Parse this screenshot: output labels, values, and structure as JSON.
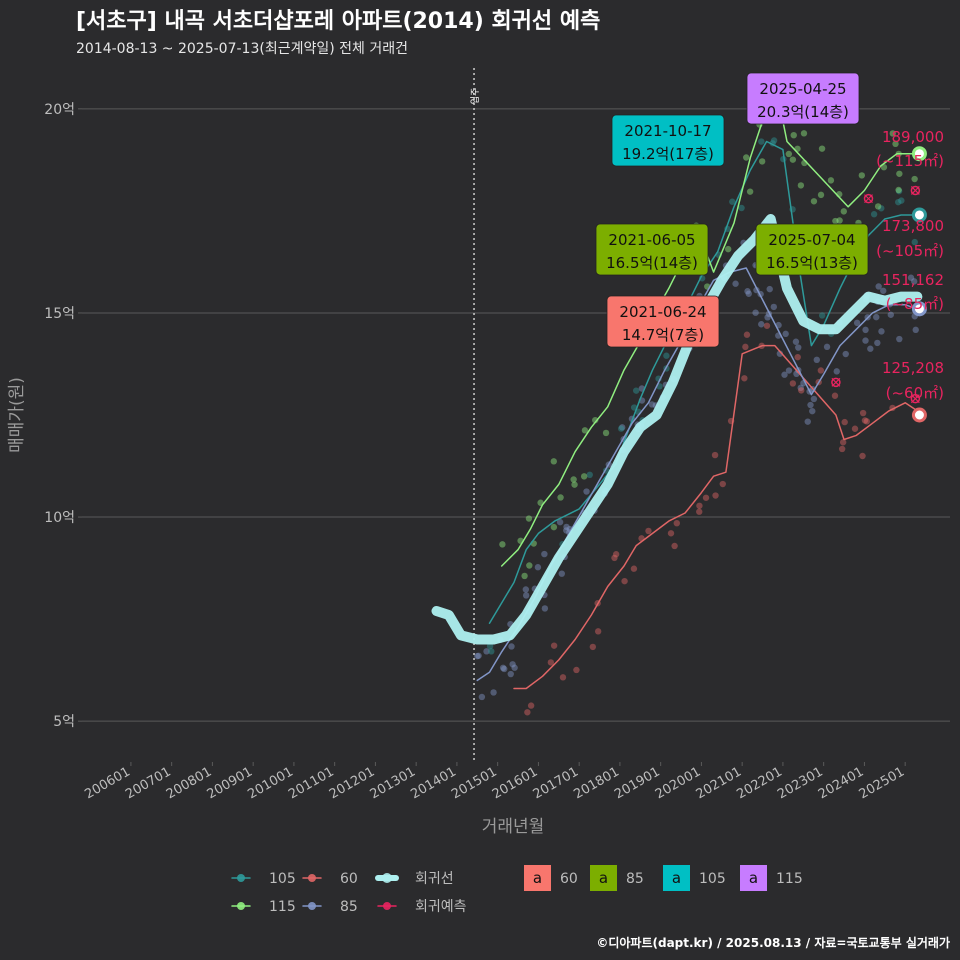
{
  "colors": {
    "background": "#2b2b2d",
    "grid": "#5a5a5a",
    "text": "#bdbdbd",
    "s105": "#2e9a9a",
    "s60": "#e06666",
    "s115": "#90ee80",
    "s85": "#8296c8",
    "regression": "#aef0f0",
    "forecast": "#e8245f",
    "box60": "#f8766d",
    "box85": "#7cae00",
    "box105": "#00bfc4",
    "box115": "#c77cff"
  },
  "chart_data": {
    "type": "line",
    "title": "[서초구] 내곡 서초더샵포레 아파트(2014) 회귀선 예측",
    "subtitle": "2014-08-13 ~ 2025-07-13(최근계약일) 전체 거래건",
    "xlabel": "거래년월",
    "ylabel": "매매가(원)",
    "x_ticks": [
      "200601",
      "200701",
      "200801",
      "200901",
      "201001",
      "201101",
      "201201",
      "201301",
      "201401",
      "201501",
      "201601",
      "201701",
      "201801",
      "201901",
      "202001",
      "202101",
      "202201",
      "202301",
      "202401",
      "202501"
    ],
    "y_ticks": [
      {
        "value": 5,
        "label": "5억"
      },
      {
        "value": 10,
        "label": "10억"
      },
      {
        "value": 15,
        "label": "15억"
      },
      {
        "value": 20,
        "label": "20억"
      }
    ],
    "ylim": [
      4,
      21
    ],
    "xlim": [
      2005.0,
      2026.3
    ],
    "vline": {
      "x": 2014.62,
      "label": "입주"
    },
    "series": [
      {
        "name": "105",
        "color_key": "s105",
        "points": [
          [
            2015.0,
            7.4
          ],
          [
            2015.6,
            8.4
          ],
          [
            2015.9,
            9.2
          ],
          [
            2016.2,
            9.6
          ],
          [
            2016.6,
            9.9
          ],
          [
            2017.2,
            10.2
          ],
          [
            2017.7,
            10.8
          ],
          [
            2018.1,
            11.3
          ],
          [
            2018.4,
            12.1
          ],
          [
            2018.7,
            12.9
          ],
          [
            2019.0,
            13.6
          ],
          [
            2019.4,
            14.4
          ],
          [
            2019.8,
            15.1
          ],
          [
            2020.2,
            15.9
          ],
          [
            2020.6,
            16.5
          ],
          [
            2021.0,
            17.6
          ],
          [
            2021.4,
            18.5
          ],
          [
            2021.8,
            19.2
          ],
          [
            2022.2,
            19.0
          ],
          [
            2022.6,
            16.1
          ],
          [
            2022.9,
            14.2
          ],
          [
            2023.2,
            14.7
          ],
          [
            2023.6,
            15.6
          ],
          [
            2023.9,
            16.2
          ],
          [
            2024.3,
            16.9
          ],
          [
            2024.7,
            17.3
          ],
          [
            2025.1,
            17.4
          ],
          [
            2025.5,
            17.4
          ]
        ]
      },
      {
        "name": "60",
        "color_key": "s60",
        "points": [
          [
            2015.6,
            5.8
          ],
          [
            2015.9,
            5.8
          ],
          [
            2016.3,
            6.1
          ],
          [
            2016.7,
            6.5
          ],
          [
            2017.1,
            7.0
          ],
          [
            2017.5,
            7.6
          ],
          [
            2017.9,
            8.3
          ],
          [
            2018.3,
            8.8
          ],
          [
            2018.6,
            9.3
          ],
          [
            2019.0,
            9.6
          ],
          [
            2019.4,
            9.9
          ],
          [
            2019.8,
            10.1
          ],
          [
            2020.2,
            10.6
          ],
          [
            2020.5,
            11.0
          ],
          [
            2020.8,
            11.1
          ],
          [
            2021.2,
            14.0
          ],
          [
            2021.7,
            14.2
          ],
          [
            2022.0,
            14.2
          ],
          [
            2023.5,
            12.5
          ],
          [
            2023.7,
            11.9
          ],
          [
            2024.0,
            12.0
          ],
          [
            2024.4,
            12.3
          ],
          [
            2024.8,
            12.6
          ],
          [
            2025.2,
            12.8
          ],
          [
            2025.5,
            12.6
          ]
        ]
      },
      {
        "name": "115",
        "color_key": "s115",
        "points": [
          [
            2015.3,
            8.8
          ],
          [
            2015.7,
            9.2
          ],
          [
            2016.0,
            9.7
          ],
          [
            2016.3,
            10.3
          ],
          [
            2016.7,
            10.8
          ],
          [
            2017.1,
            11.6
          ],
          [
            2017.5,
            12.2
          ],
          [
            2017.9,
            12.7
          ],
          [
            2018.3,
            13.6
          ],
          [
            2018.7,
            14.3
          ],
          [
            2019.0,
            14.9
          ],
          [
            2019.4,
            15.6
          ],
          [
            2019.8,
            16.4
          ],
          [
            2020.2,
            16.8
          ],
          [
            2020.5,
            16.0
          ],
          [
            2021.0,
            17.2
          ],
          [
            2021.4,
            18.8
          ],
          [
            2021.8,
            20.0
          ],
          [
            2022.1,
            20.2
          ],
          [
            2022.3,
            19.2
          ],
          [
            2023.8,
            17.6
          ],
          [
            2024.2,
            18.0
          ],
          [
            2024.6,
            18.6
          ],
          [
            2025.0,
            18.9
          ],
          [
            2025.5,
            18.9
          ]
        ]
      },
      {
        "name": "85",
        "color_key": "s85",
        "points": [
          [
            2014.7,
            6.0
          ],
          [
            2015.0,
            6.2
          ],
          [
            2015.3,
            6.7
          ],
          [
            2015.7,
            7.3
          ],
          [
            2016.1,
            8.0
          ],
          [
            2016.5,
            8.8
          ],
          [
            2016.9,
            9.5
          ],
          [
            2017.3,
            10.2
          ],
          [
            2017.7,
            10.9
          ],
          [
            2018.1,
            11.6
          ],
          [
            2018.5,
            12.3
          ],
          [
            2018.9,
            12.8
          ],
          [
            2019.3,
            13.6
          ],
          [
            2019.7,
            14.3
          ],
          [
            2020.1,
            15.1
          ],
          [
            2020.5,
            15.8
          ],
          [
            2020.9,
            16.0
          ],
          [
            2021.3,
            16.1
          ],
          [
            2022.9,
            13.0
          ],
          [
            2023.2,
            13.5
          ],
          [
            2023.6,
            14.2
          ],
          [
            2024.0,
            14.6
          ],
          [
            2024.4,
            15.0
          ],
          [
            2024.8,
            15.2
          ],
          [
            2025.2,
            15.2
          ],
          [
            2025.5,
            15.1
          ]
        ]
      },
      {
        "name": "회귀선",
        "color_key": "regression",
        "points": [
          [
            2013.7,
            7.7
          ],
          [
            2014.0,
            7.6
          ],
          [
            2014.3,
            7.1
          ],
          [
            2014.7,
            7.0
          ],
          [
            2015.1,
            7.0
          ],
          [
            2015.5,
            7.1
          ],
          [
            2015.9,
            7.6
          ],
          [
            2016.3,
            8.3
          ],
          [
            2016.7,
            9.0
          ],
          [
            2017.1,
            9.6
          ],
          [
            2017.5,
            10.2
          ],
          [
            2017.9,
            10.8
          ],
          [
            2018.3,
            11.6
          ],
          [
            2018.7,
            12.2
          ],
          [
            2019.1,
            12.5
          ],
          [
            2019.5,
            13.3
          ],
          [
            2019.9,
            14.3
          ],
          [
            2020.3,
            15.1
          ],
          [
            2020.7,
            15.8
          ],
          [
            2021.1,
            16.4
          ],
          [
            2021.5,
            16.8
          ],
          [
            2021.9,
            17.3
          ],
          [
            2022.3,
            15.6
          ],
          [
            2022.7,
            14.8
          ],
          [
            2023.1,
            14.6
          ],
          [
            2023.5,
            14.6
          ],
          [
            2023.9,
            15.0
          ],
          [
            2024.3,
            15.4
          ],
          [
            2024.7,
            15.3
          ],
          [
            2025.1,
            15.4
          ],
          [
            2025.5,
            15.4
          ]
        ]
      }
    ],
    "forecast_points": [
      {
        "series": "115",
        "x": 2025.55,
        "y": 18.9,
        "price": "189,000",
        "area": "(~115㎡)"
      },
      {
        "series": "105",
        "x": 2025.55,
        "y": 17.4,
        "price": "173,800",
        "area": "(~105㎡)"
      },
      {
        "series": "85",
        "x": 2025.55,
        "y": 15.1,
        "price": "151,162",
        "area": "(~85㎡)"
      },
      {
        "series": "60",
        "x": 2025.55,
        "y": 12.5,
        "price": "125,208",
        "area": "(~60㎡)"
      }
    ],
    "callouts": [
      {
        "date": "2021-10-17",
        "value": "19.2억(17층)",
        "series": "105"
      },
      {
        "date": "2025-04-25",
        "value": "20.3억(14층)",
        "series": "115"
      },
      {
        "date": "2021-06-05",
        "value": "16.5억(14층)",
        "series": "85"
      },
      {
        "date": "2025-07-04",
        "value": "16.5억(13층)",
        "series": "85"
      },
      {
        "date": "2021-06-24",
        "value": "14.7억(7층)",
        "series": "60"
      }
    ],
    "legend": {
      "placement": "bottom",
      "lines": [
        {
          "label": "105",
          "color_key": "s105"
        },
        {
          "label": "60",
          "color_key": "s60"
        },
        {
          "label": "회귀선",
          "color_key": "regression"
        },
        {
          "label": "115",
          "color_key": "s115"
        },
        {
          "label": "85",
          "color_key": "s85"
        },
        {
          "label": "회귀예측",
          "color_key": "forecast"
        }
      ],
      "boxes": [
        {
          "label": "60",
          "color_key": "box60",
          "glyph": "a"
        },
        {
          "label": "85",
          "color_key": "box85",
          "glyph": "a"
        },
        {
          "label": "105",
          "color_key": "box105",
          "glyph": "a"
        },
        {
          "label": "115",
          "color_key": "box115",
          "glyph": "a"
        }
      ]
    },
    "grid": true,
    "credit": "©디아파트(dapt.kr) / 2025.08.13 / 자료=국토교통부 실거래가"
  }
}
